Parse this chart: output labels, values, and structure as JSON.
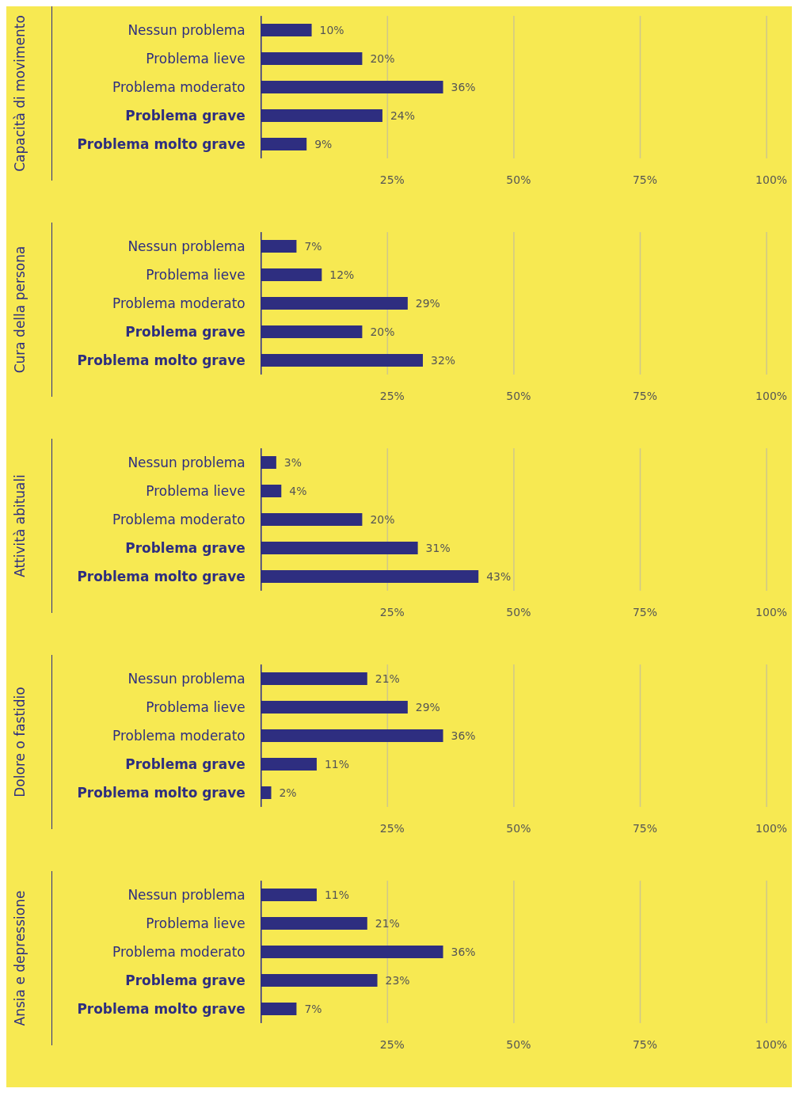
{
  "chart_data": [
    {
      "type": "bar",
      "orientation": "horizontal",
      "ylabel": "Capacità di movimento",
      "categories": [
        "Nessun problema",
        "Problema lieve",
        "Problema moderato",
        "Problema grave",
        "Problema molto grave"
      ],
      "values": [
        10,
        20,
        36,
        24,
        9
      ],
      "value_labels": [
        "10%",
        "20%",
        "36%",
        "24%",
        "9%"
      ],
      "color": "#2e2e80",
      "xlim": [
        0,
        100
      ],
      "xticks": [
        {
          "value": 25,
          "label": "25%"
        },
        {
          "value": 50,
          "label": "50%"
        },
        {
          "value": 75,
          "label": "75%"
        },
        {
          "value": 100,
          "label": "100%"
        }
      ],
      "grid": "x"
    },
    {
      "type": "bar",
      "orientation": "horizontal",
      "ylabel": "Cura della persona",
      "categories": [
        "Nessun problema",
        "Problema lieve",
        "Problema moderato",
        "Problema grave",
        "Problema molto grave"
      ],
      "values": [
        7,
        12,
        29,
        20,
        32
      ],
      "value_labels": [
        "7%",
        "12%",
        "29%",
        "20%",
        "32%"
      ],
      "color": "#2e2e80",
      "xlim": [
        0,
        100
      ],
      "xticks": [
        {
          "value": 25,
          "label": "25%"
        },
        {
          "value": 50,
          "label": "50%"
        },
        {
          "value": 75,
          "label": "75%"
        },
        {
          "value": 100,
          "label": "100%"
        }
      ],
      "grid": "x"
    },
    {
      "type": "bar",
      "orientation": "horizontal",
      "ylabel": "Attività abituali",
      "categories": [
        "Nessun problema",
        "Problema lieve",
        "Problema moderato",
        "Problema grave",
        "Problema molto grave"
      ],
      "values": [
        3,
        4,
        20,
        31,
        43
      ],
      "value_labels": [
        "3%",
        "4%",
        "20%",
        "31%",
        "43%"
      ],
      "color": "#2e2e80",
      "xlim": [
        0,
        100
      ],
      "xticks": [
        {
          "value": 25,
          "label": "25%"
        },
        {
          "value": 50,
          "label": "50%"
        },
        {
          "value": 75,
          "label": "75%"
        },
        {
          "value": 100,
          "label": "100%"
        }
      ],
      "grid": "x"
    },
    {
      "type": "bar",
      "orientation": "horizontal",
      "ylabel": "Dolore o fastidio",
      "categories": [
        "Nessun problema",
        "Problema lieve",
        "Problema moderato",
        "Problema grave",
        "Problema molto grave"
      ],
      "values": [
        21,
        29,
        36,
        11,
        2
      ],
      "value_labels": [
        "21%",
        "29%",
        "36%",
        "11%",
        "2%"
      ],
      "color": "#2e2e80",
      "xlim": [
        0,
        100
      ],
      "xticks": [
        {
          "value": 25,
          "label": "25%"
        },
        {
          "value": 50,
          "label": "50%"
        },
        {
          "value": 75,
          "label": "75%"
        },
        {
          "value": 100,
          "label": "100%"
        }
      ],
      "grid": "x"
    },
    {
      "type": "bar",
      "orientation": "horizontal",
      "ylabel": "Ansia e depressione",
      "categories": [
        "Nessun problema",
        "Problema lieve",
        "Problema moderato",
        "Problema grave",
        "Problema molto grave"
      ],
      "values": [
        11,
        21,
        36,
        23,
        7
      ],
      "value_labels": [
        "11%",
        "21%",
        "36%",
        "23%",
        "7%"
      ],
      "color": "#2e2e80",
      "xlim": [
        0,
        100
      ],
      "xticks": [
        {
          "value": 25,
          "label": "25%"
        },
        {
          "value": 50,
          "label": "50%"
        },
        {
          "value": 75,
          "label": "75%"
        },
        {
          "value": 100,
          "label": "100%"
        }
      ],
      "grid": "x"
    }
  ]
}
